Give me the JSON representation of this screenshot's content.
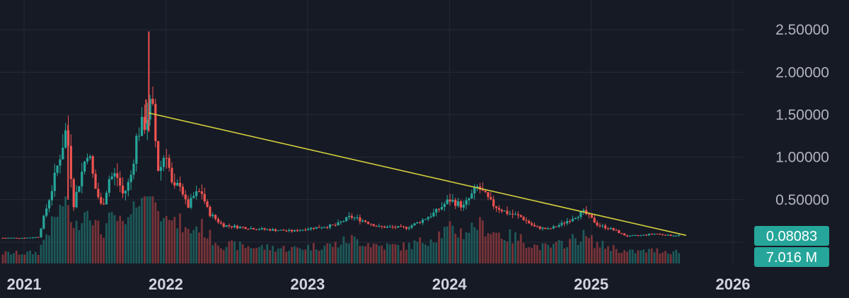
{
  "chart_data": {
    "type": "candlestick",
    "y_ticks": [
      "2.50000",
      "2.00000",
      "1.50000",
      "1.00000",
      "0.50000"
    ],
    "y_tick_values": [
      2.5,
      2.0,
      1.5,
      1.0,
      0.5
    ],
    "ylim": [
      -0.25,
      2.85
    ],
    "x_ticks": [
      "2021",
      "2022",
      "2023",
      "2024",
      "2025",
      "2026"
    ],
    "x_tick_values": [
      2021,
      2022,
      2023,
      2024,
      2025,
      2026
    ],
    "xlim": [
      2020.83,
      2026.07
    ],
    "grid": true,
    "colors": {
      "background": "#161a25",
      "grid": "#262a35",
      "up": "#26a69a",
      "down": "#ef5350",
      "trendline": "#d2cf3c",
      "badge": "#26a69a"
    },
    "last_price": {
      "label": "0.08083",
      "value": 0.08083
    },
    "last_volume": {
      "label": "7.016 M"
    },
    "trendline": {
      "x": [
        2021.88,
        2025.67
      ],
      "y": [
        1.52,
        0.08
      ]
    },
    "price_path": [
      [
        2020.85,
        0.05
      ],
      [
        2021.0,
        0.05
      ],
      [
        2021.1,
        0.06
      ],
      [
        2021.2,
        0.65
      ],
      [
        2021.3,
        1.35
      ],
      [
        2021.35,
        0.45
      ],
      [
        2021.45,
        1.1
      ],
      [
        2021.5,
        0.65
      ],
      [
        2021.55,
        0.4
      ],
      [
        2021.6,
        0.75
      ],
      [
        2021.65,
        0.8
      ],
      [
        2021.7,
        0.55
      ],
      [
        2021.75,
        0.75
      ],
      [
        2021.8,
        1.3
      ],
      [
        2021.85,
        1.4
      ],
      [
        2021.9,
        1.65
      ],
      [
        2021.95,
        0.8
      ],
      [
        2022.0,
        1.1
      ],
      [
        2022.05,
        0.6
      ],
      [
        2022.1,
        0.7
      ],
      [
        2022.15,
        0.4
      ],
      [
        2022.2,
        0.55
      ],
      [
        2022.25,
        0.6
      ],
      [
        2022.3,
        0.35
      ],
      [
        2022.4,
        0.2
      ],
      [
        2022.5,
        0.18
      ],
      [
        2022.7,
        0.15
      ],
      [
        2022.9,
        0.13
      ],
      [
        2023.0,
        0.16
      ],
      [
        2023.2,
        0.2
      ],
      [
        2023.3,
        0.3
      ],
      [
        2023.4,
        0.25
      ],
      [
        2023.5,
        0.18
      ],
      [
        2023.7,
        0.17
      ],
      [
        2023.8,
        0.25
      ],
      [
        2023.9,
        0.35
      ],
      [
        2024.0,
        0.5
      ],
      [
        2024.1,
        0.42
      ],
      [
        2024.2,
        0.65
      ],
      [
        2024.3,
        0.45
      ],
      [
        2024.4,
        0.35
      ],
      [
        2024.5,
        0.3
      ],
      [
        2024.6,
        0.18
      ],
      [
        2024.7,
        0.15
      ],
      [
        2024.8,
        0.22
      ],
      [
        2024.9,
        0.32
      ],
      [
        2024.95,
        0.35
      ],
      [
        2025.05,
        0.2
      ],
      [
        2025.15,
        0.15
      ],
      [
        2025.25,
        0.07
      ],
      [
        2025.35,
        0.08
      ],
      [
        2025.45,
        0.1
      ],
      [
        2025.55,
        0.08
      ],
      [
        2025.62,
        0.08
      ]
    ],
    "spikes": [
      {
        "x": 2021.88,
        "low": 1.3,
        "high": 2.48
      },
      {
        "x": 2021.86,
        "low": 1.4,
        "high": 1.68
      },
      {
        "x": 2021.31,
        "low": 0.5,
        "high": 1.38
      }
    ]
  }
}
